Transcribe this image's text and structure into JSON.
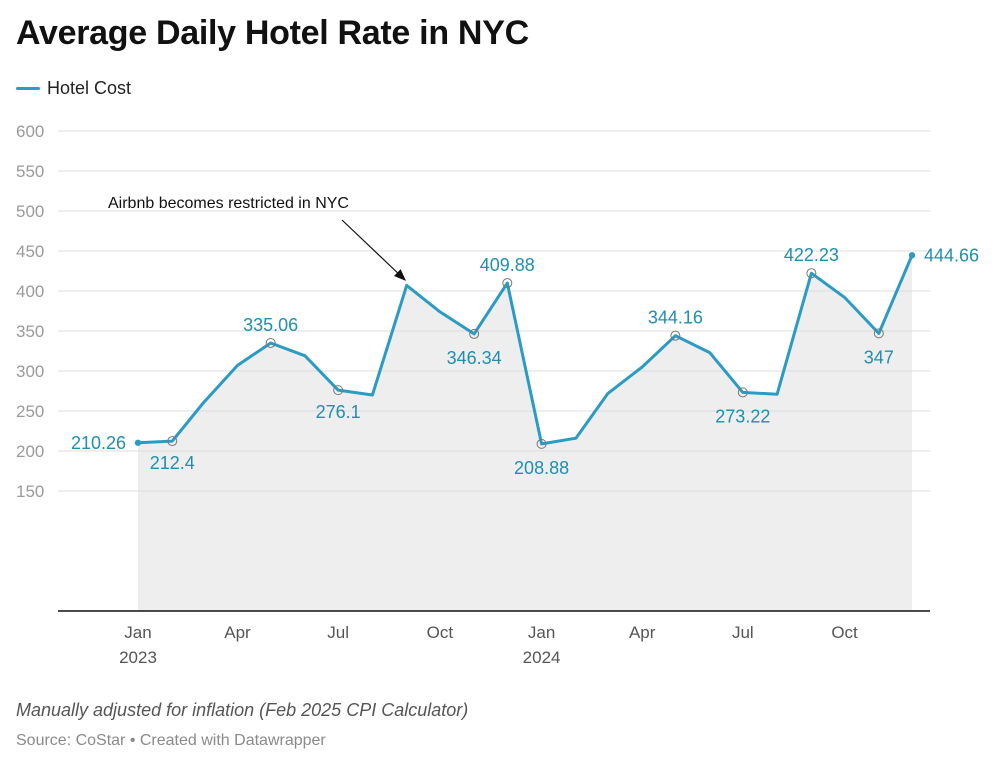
{
  "title": "Average Daily Hotel Rate in NYC",
  "legend": {
    "label": "Hotel Cost",
    "color": "#2a9bc4"
  },
  "note": "Manually adjusted for inflation (Feb 2025 CPI Calculator)",
  "source": "Source: CoStar • Created with Datawrapper",
  "annotation": {
    "text": "Airbnb becomes restricted in NYC",
    "x": "2023-09-05"
  },
  "chart_data": {
    "type": "area",
    "title": "Average Daily Hotel Rate in NYC",
    "xlabel": "",
    "ylabel": "",
    "ylim": [
      0,
      600
    ],
    "yticks": [
      150,
      200,
      250,
      300,
      350,
      400,
      450,
      500,
      550,
      600
    ],
    "grid": true,
    "legend_position": "top-left",
    "line_color": "#2a9bc4",
    "area_color": "#eeeeee",
    "xticks": [
      {
        "date": "2023-01-01",
        "label": "Jan",
        "year": "2023"
      },
      {
        "date": "2023-04-01",
        "label": "Apr",
        "year": ""
      },
      {
        "date": "2023-07-01",
        "label": "Jul",
        "year": ""
      },
      {
        "date": "2023-10-01",
        "label": "Oct",
        "year": ""
      },
      {
        "date": "2024-01-01",
        "label": "Jan",
        "year": "2024"
      },
      {
        "date": "2024-04-01",
        "label": "Apr",
        "year": ""
      },
      {
        "date": "2024-07-01",
        "label": "Jul",
        "year": ""
      },
      {
        "date": "2024-10-01",
        "label": "Oct",
        "year": ""
      }
    ],
    "series": [
      {
        "name": "Hotel Cost",
        "points": [
          {
            "date": "2023-01-01",
            "value": 210.26,
            "label": "210.26"
          },
          {
            "date": "2023-02-01",
            "value": 212.4,
            "label": "212.4"
          },
          {
            "date": "2023-03-01",
            "value": 260
          },
          {
            "date": "2023-04-01",
            "value": 307
          },
          {
            "date": "2023-05-01",
            "value": 335.06,
            "label": "335.06"
          },
          {
            "date": "2023-06-01",
            "value": 319
          },
          {
            "date": "2023-07-01",
            "value": 276.1,
            "label": "276.1"
          },
          {
            "date": "2023-08-01",
            "value": 270
          },
          {
            "date": "2023-09-01",
            "value": 407
          },
          {
            "date": "2023-10-01",
            "value": 374
          },
          {
            "date": "2023-11-01",
            "value": 346.34,
            "label": "346.34"
          },
          {
            "date": "2023-12-01",
            "value": 409.88,
            "label": "409.88"
          },
          {
            "date": "2024-01-01",
            "value": 208.88,
            "label": "208.88"
          },
          {
            "date": "2024-02-01",
            "value": 216
          },
          {
            "date": "2024-03-01",
            "value": 272
          },
          {
            "date": "2024-04-01",
            "value": 305
          },
          {
            "date": "2024-05-01",
            "value": 344.16,
            "label": "344.16"
          },
          {
            "date": "2024-06-01",
            "value": 323
          },
          {
            "date": "2024-07-01",
            "value": 273.22,
            "label": "273.22"
          },
          {
            "date": "2024-08-01",
            "value": 271
          },
          {
            "date": "2024-09-01",
            "value": 422.23,
            "label": "422.23"
          },
          {
            "date": "2024-10-01",
            "value": 392
          },
          {
            "date": "2024-11-01",
            "value": 347,
            "label": "347"
          },
          {
            "date": "2024-12-01",
            "value": 444.66,
            "label": "444.66"
          }
        ]
      }
    ]
  }
}
